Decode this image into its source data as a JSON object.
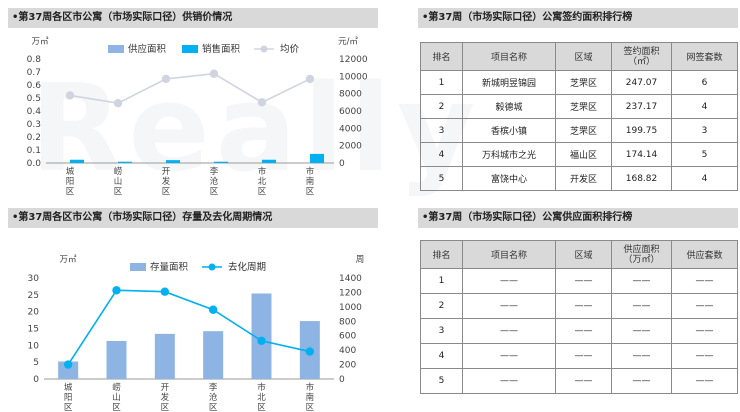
{
  "panels": {
    "supply_sales_title": "•第37周各区市公寓（市场实际口径）供销价情况",
    "stock_title": "•第37周各区市公寓（市场实际口径）存量及去化周期情况",
    "signing_rank_title": "•第37周（市场实际口径）公寓签约面积排行榜",
    "supply_rank_title": "•第37周（市场实际口径）公寓供应面积排行榜"
  },
  "watermark": "Really",
  "colors": {
    "supply_bar": "#8eb4e3",
    "sales_bar": "#00b0f0",
    "price_line": "#d0d4e0",
    "stock_bar": "#8eb4e3",
    "cycle_line": "#00b0f0"
  },
  "chart_data": [
    {
      "type": "bar",
      "categories": [
        "城阳区",
        "崂山区",
        "开发区",
        "李沧区",
        "市北区",
        "市南区"
      ],
      "y_left_unit": "万㎡",
      "y_right_unit": "元/㎡",
      "ylim_left": [
        0,
        0.8
      ],
      "yticks_left": [
        "0.0",
        "0.1",
        "0.2",
        "0.3",
        "0.4",
        "0.5",
        "0.6",
        "0.7",
        "0.8"
      ],
      "ylim_right": [
        0,
        12000
      ],
      "yticks_right": [
        "0",
        "2000",
        "4000",
        "6000",
        "8000",
        "10000",
        "12000"
      ],
      "legend_position": "top",
      "series": [
        {
          "name": "供应面积",
          "kind": "bar",
          "axis": "left",
          "values": [
            0,
            0,
            0,
            0,
            0,
            0
          ]
        },
        {
          "name": "销售面积",
          "kind": "bar",
          "axis": "left",
          "values": [
            0.025,
            0.01,
            0.022,
            0.01,
            0.025,
            0.07
          ]
        },
        {
          "name": "均价",
          "kind": "line",
          "axis": "right",
          "values": [
            7800,
            6900,
            9700,
            10300,
            7000,
            9700
          ]
        }
      ]
    },
    {
      "type": "bar",
      "categories": [
        "城阳区",
        "崂山区",
        "开发区",
        "李沧区",
        "市北区",
        "市南区"
      ],
      "y_left_unit": "万㎡",
      "y_right_unit": "周",
      "ylim_left": [
        0,
        30
      ],
      "yticks_left": [
        "0",
        "5",
        "10",
        "15",
        "20",
        "25",
        "30"
      ],
      "ylim_right": [
        0,
        1400
      ],
      "yticks_right": [
        "0",
        "200",
        "400",
        "600",
        "800",
        "1000",
        "1200",
        "1400"
      ],
      "legend_position": "top",
      "series": [
        {
          "name": "存量面积",
          "kind": "bar",
          "axis": "left",
          "values": [
            5.2,
            11.3,
            13.4,
            14.2,
            25.4,
            17.2
          ]
        },
        {
          "name": "去化周期",
          "kind": "line",
          "axis": "right",
          "values": [
            200,
            1230,
            1210,
            960,
            530,
            380
          ]
        }
      ]
    }
  ],
  "signing_table": {
    "headers": [
      "排名",
      "项目名称",
      "区域",
      "签约面积",
      "（㎡）",
      "网签套数"
    ],
    "rows": [
      [
        "1",
        "新城明昱锦园",
        "芝罘区",
        "247.07",
        "6"
      ],
      [
        "2",
        "毅德城",
        "芝罘区",
        "237.17",
        "4"
      ],
      [
        "3",
        "香槟小镇",
        "芝罘区",
        "199.75",
        "3"
      ],
      [
        "4",
        "万科城市之光",
        "福山区",
        "174.14",
        "5"
      ],
      [
        "5",
        "富饶中心",
        "开发区",
        "168.82",
        "4"
      ]
    ]
  },
  "supply_table": {
    "headers": [
      "排名",
      "项目名称",
      "区域",
      "供应面积",
      "（万㎡）",
      "供应套数"
    ],
    "rows": [
      [
        "1",
        "——",
        "——",
        "——",
        "——"
      ],
      [
        "2",
        "——",
        "——",
        "——",
        "——"
      ],
      [
        "3",
        "——",
        "——",
        "——",
        "——"
      ],
      [
        "4",
        "——",
        "——",
        "——",
        "——"
      ],
      [
        "5",
        "——",
        "——",
        "——",
        "——"
      ]
    ]
  }
}
